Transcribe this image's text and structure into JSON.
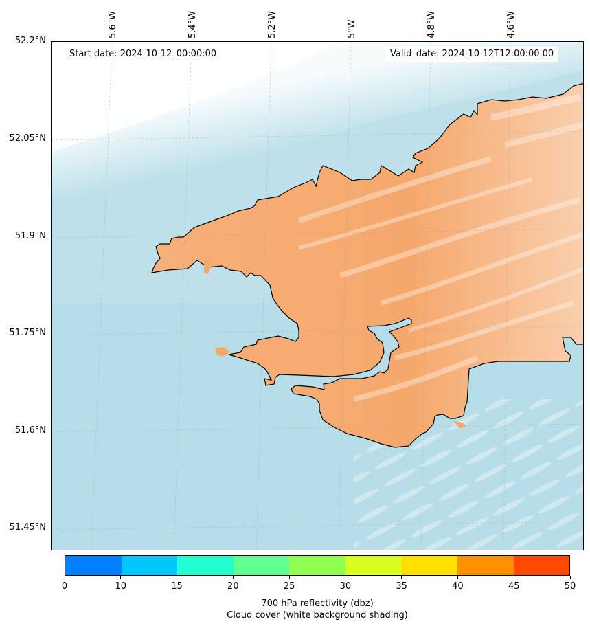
{
  "header": {
    "start_date": "Start date: 2024-10-12_00:00:00",
    "valid_date": "Valid_date: 2024-10-12T12:00:00.00"
  },
  "axes": {
    "lon_labels": [
      "5.6°W",
      "5.4°W",
      "5.2°W",
      "5°W",
      "4.8°W",
      "4.6°W"
    ],
    "lat_labels": [
      "52.2°N",
      "52.05°N",
      "51.9°N",
      "51.75°N",
      "51.6°N",
      "51.45°N"
    ]
  },
  "colorbar": {
    "ticks": [
      "0",
      "10",
      "15",
      "20",
      "25",
      "30",
      "35",
      "40",
      "45",
      "50"
    ],
    "colors": [
      "#0080ff",
      "#00c8ff",
      "#20ffd0",
      "#60ff90",
      "#90ff50",
      "#d8ff20",
      "#ffe000",
      "#ff9000",
      "#ff4800"
    ],
    "label_line1": "700 hPa reflectivity (dbz)",
    "label_line2": "Cloud cover (white background shading)"
  },
  "colors": {
    "sea": "#bfe0ea",
    "land": "#f4a86a",
    "cloud": "#ffffff",
    "coastline": "#000000"
  }
}
